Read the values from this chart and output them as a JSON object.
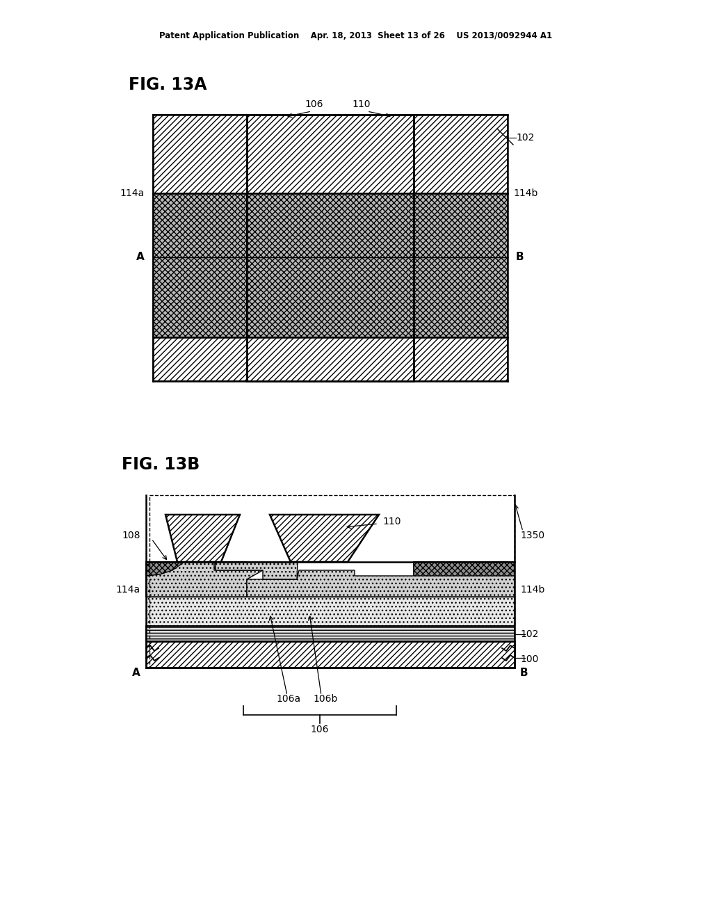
{
  "bg_color": "#ffffff",
  "page_header": "Patent Application Publication    Apr. 18, 2013  Sheet 13 of 26    US 2013/0092944 A1",
  "fig13a_label": "FIG. 13A",
  "fig13b_label": "FIG. 13B"
}
